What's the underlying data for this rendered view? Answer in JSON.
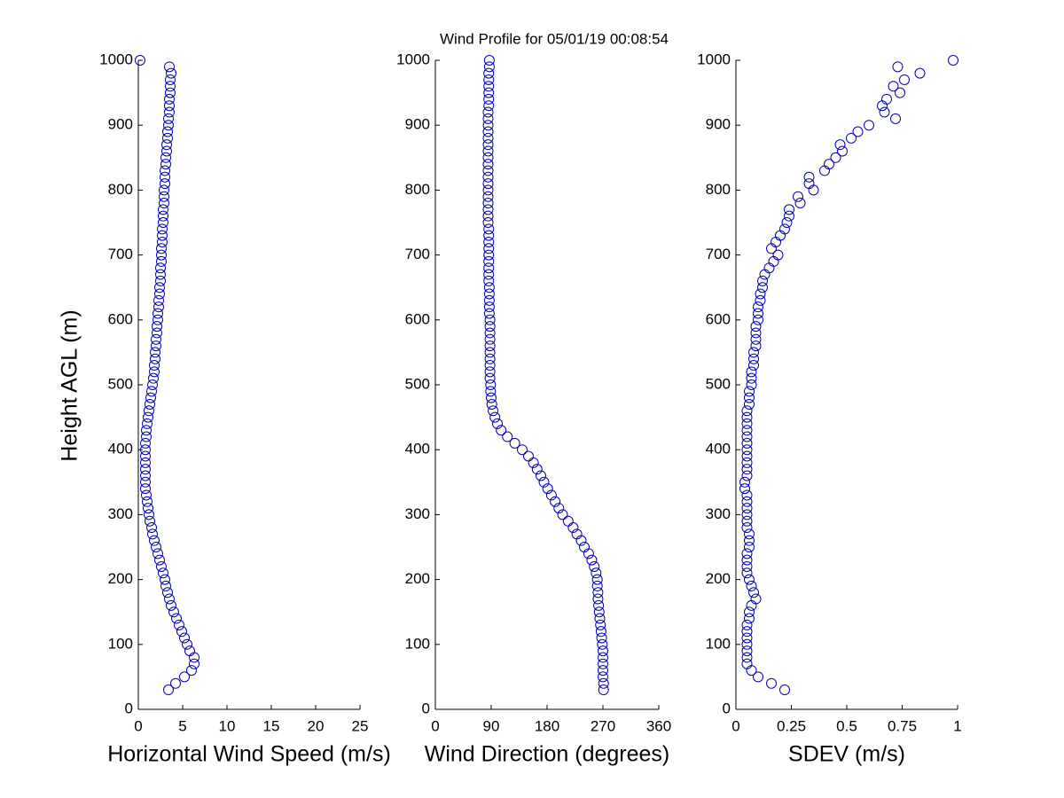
{
  "chart_data": [
    {
      "type": "scatter",
      "title": "Wind Profile for  05/01/19 00:08:54",
      "xlabel": "Horizontal Wind Speed (m/s)",
      "ylabel": "Height AGL (m)",
      "color": "#0000b4",
      "xlim": [
        0,
        25
      ],
      "xticks": [
        0,
        5,
        10,
        15,
        20,
        25
      ],
      "ylim": [
        0,
        1000
      ],
      "yticks": [
        0,
        100,
        200,
        300,
        400,
        500,
        600,
        700,
        800,
        900,
        1000
      ],
      "x": [
        3.4,
        4.2,
        5.2,
        6.0,
        6.3,
        6.3,
        5.8,
        5.5,
        5.2,
        4.9,
        4.6,
        4.3,
        4.0,
        3.7,
        3.5,
        3.3,
        3.1,
        3.0,
        2.8,
        2.6,
        2.4,
        2.2,
        2.0,
        1.8,
        1.6,
        1.5,
        1.3,
        1.2,
        1.1,
        1.0,
        0.9,
        0.8,
        0.8,
        0.8,
        0.8,
        0.8,
        0.8,
        0.8,
        0.8,
        0.9,
        0.9,
        1.0,
        1.1,
        1.2,
        1.3,
        1.4,
        1.5,
        1.6,
        1.7,
        1.8,
        1.8,
        1.9,
        1.9,
        2.0,
        2.0,
        2.1,
        2.1,
        2.2,
        2.2,
        2.3,
        2.3,
        2.4,
        2.4,
        2.5,
        2.5,
        2.5,
        2.6,
        2.6,
        2.6,
        2.7,
        2.7,
        2.7,
        2.8,
        2.8,
        2.8,
        2.9,
        2.9,
        2.9,
        3.0,
        3.0,
        3.0,
        3.1,
        3.1,
        3.2,
        3.2,
        3.3,
        3.3,
        3.4,
        3.4,
        3.5,
        3.5,
        3.5,
        3.6,
        3.6,
        3.6,
        3.7,
        3.5,
        0.2
      ],
      "y": [
        30,
        40,
        50,
        60,
        70,
        80,
        90,
        100,
        110,
        120,
        130,
        140,
        150,
        160,
        170,
        180,
        190,
        200,
        210,
        220,
        230,
        240,
        250,
        260,
        270,
        280,
        290,
        300,
        310,
        320,
        330,
        340,
        350,
        360,
        370,
        380,
        390,
        400,
        410,
        420,
        430,
        440,
        450,
        460,
        470,
        480,
        490,
        500,
        510,
        520,
        530,
        540,
        550,
        560,
        570,
        580,
        590,
        600,
        610,
        620,
        630,
        640,
        650,
        660,
        670,
        680,
        690,
        700,
        710,
        720,
        730,
        740,
        750,
        760,
        770,
        780,
        790,
        800,
        810,
        820,
        830,
        840,
        850,
        860,
        870,
        880,
        890,
        900,
        910,
        920,
        930,
        940,
        950,
        960,
        970,
        980,
        990,
        1000
      ]
    },
    {
      "type": "scatter",
      "xlabel": "Wind Direction (degrees)",
      "color": "#0000b4",
      "xlim": [
        0,
        360
      ],
      "xticks": [
        0,
        90,
        180,
        270,
        360
      ],
      "ylim": [
        0,
        1000
      ],
      "yticks": [
        0,
        100,
        200,
        300,
        400,
        500,
        600,
        700,
        800,
        900,
        1000
      ],
      "x": [
        271,
        271,
        270,
        270,
        270,
        270,
        270,
        269,
        268,
        267,
        266,
        265,
        264,
        263,
        262,
        262,
        261,
        261,
        259,
        256,
        252,
        247,
        240,
        235,
        228,
        222,
        214,
        205,
        199,
        193,
        187,
        181,
        175,
        170,
        164,
        158,
        150,
        140,
        128,
        116,
        106,
        100,
        96,
        93,
        91,
        90,
        89,
        89,
        88,
        88,
        88,
        88,
        88,
        88,
        88,
        88,
        88,
        88,
        87,
        87,
        87,
        87,
        87,
        86,
        86,
        86,
        86,
        86,
        86,
        86,
        86,
        86,
        85,
        85,
        85,
        85,
        85,
        85,
        85,
        85,
        85,
        85,
        85,
        85,
        85,
        85,
        85,
        85,
        85,
        85,
        86,
        86,
        86,
        86,
        86,
        86,
        87,
        87
      ],
      "y": [
        30,
        40,
        50,
        60,
        70,
        80,
        90,
        100,
        110,
        120,
        130,
        140,
        150,
        160,
        170,
        180,
        190,
        200,
        210,
        220,
        230,
        240,
        250,
        260,
        270,
        280,
        290,
        300,
        310,
        320,
        330,
        340,
        350,
        360,
        370,
        380,
        390,
        400,
        410,
        420,
        430,
        440,
        450,
        460,
        470,
        480,
        490,
        500,
        510,
        520,
        530,
        540,
        550,
        560,
        570,
        580,
        590,
        600,
        610,
        620,
        630,
        640,
        650,
        660,
        670,
        680,
        690,
        700,
        710,
        720,
        730,
        740,
        750,
        760,
        770,
        780,
        790,
        800,
        810,
        820,
        830,
        840,
        850,
        860,
        870,
        880,
        890,
        900,
        910,
        920,
        930,
        940,
        950,
        960,
        970,
        980,
        990,
        1000
      ]
    },
    {
      "type": "scatter",
      "xlabel": "SDEV  (m/s)",
      "color": "#0000b4",
      "xlim": [
        0,
        1
      ],
      "xticks": [
        0,
        0.25,
        0.5,
        0.75,
        1
      ],
      "ylim": [
        0,
        1000
      ],
      "yticks": [
        0,
        100,
        200,
        300,
        400,
        500,
        600,
        700,
        800,
        900,
        1000
      ],
      "x": [
        0.22,
        0.16,
        0.1,
        0.07,
        0.05,
        0.05,
        0.05,
        0.05,
        0.05,
        0.05,
        0.05,
        0.06,
        0.06,
        0.07,
        0.09,
        0.08,
        0.07,
        0.06,
        0.05,
        0.05,
        0.05,
        0.05,
        0.06,
        0.06,
        0.06,
        0.05,
        0.05,
        0.05,
        0.05,
        0.05,
        0.05,
        0.04,
        0.04,
        0.05,
        0.05,
        0.05,
        0.05,
        0.05,
        0.05,
        0.05,
        0.05,
        0.05,
        0.05,
        0.05,
        0.06,
        0.06,
        0.06,
        0.07,
        0.07,
        0.07,
        0.08,
        0.08,
        0.08,
        0.09,
        0.09,
        0.09,
        0.09,
        0.1,
        0.1,
        0.1,
        0.11,
        0.11,
        0.12,
        0.12,
        0.13,
        0.15,
        0.17,
        0.19,
        0.16,
        0.18,
        0.2,
        0.22,
        0.23,
        0.24,
        0.24,
        0.29,
        0.28,
        0.35,
        0.33,
        0.33,
        0.4,
        0.42,
        0.45,
        0.48,
        0.47,
        0.52,
        0.55,
        0.6,
        0.72,
        0.67,
        0.66,
        0.68,
        0.74,
        0.71,
        0.76,
        0.83,
        0.73,
        0.98
      ],
      "y": [
        30,
        40,
        50,
        60,
        70,
        80,
        90,
        100,
        110,
        120,
        130,
        140,
        150,
        160,
        170,
        180,
        190,
        200,
        210,
        220,
        230,
        240,
        250,
        260,
        270,
        280,
        290,
        300,
        310,
        320,
        330,
        340,
        350,
        360,
        370,
        380,
        390,
        400,
        410,
        420,
        430,
        440,
        450,
        460,
        470,
        480,
        490,
        500,
        510,
        520,
        530,
        540,
        550,
        560,
        570,
        580,
        590,
        600,
        610,
        620,
        630,
        640,
        650,
        660,
        670,
        680,
        690,
        700,
        710,
        720,
        730,
        740,
        750,
        760,
        770,
        780,
        790,
        800,
        810,
        820,
        830,
        840,
        850,
        860,
        870,
        880,
        890,
        900,
        910,
        920,
        930,
        940,
        950,
        960,
        970,
        980,
        990,
        1000
      ]
    }
  ]
}
